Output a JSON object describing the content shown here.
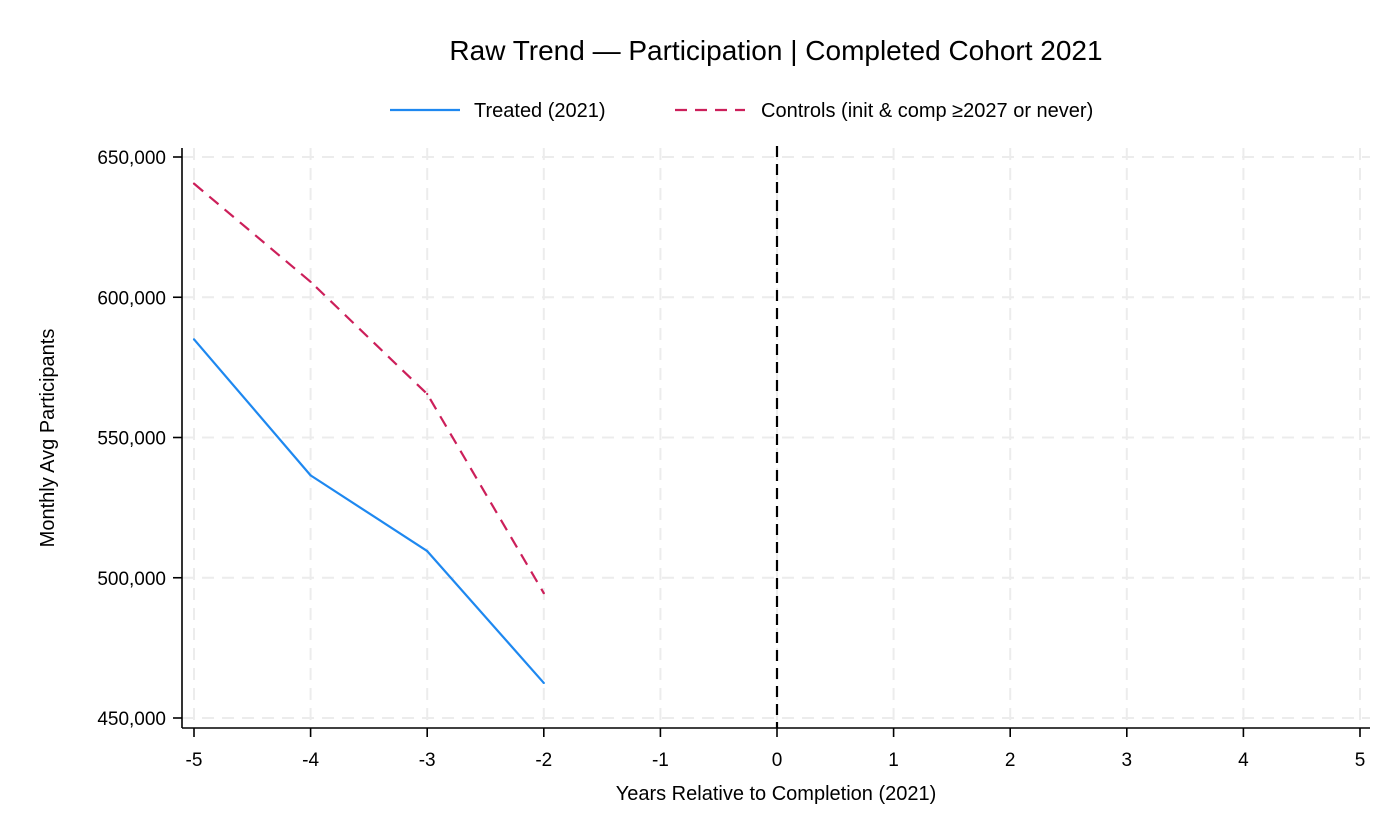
{
  "chart_data": {
    "type": "line",
    "title": "Raw Trend — Participation | Completed Cohort 2021",
    "xlabel": "Years Relative to Completion (2021)",
    "ylabel": "Monthly Avg Participants",
    "xlim": [
      -5,
      5
    ],
    "ylim": [
      450000,
      650000
    ],
    "x_ticks": [
      -5,
      -4,
      -3,
      -2,
      -1,
      0,
      1,
      2,
      3,
      4,
      5
    ],
    "x_tick_labels": [
      "-5",
      "-4",
      "-3",
      "-2",
      "-1",
      "0",
      "1",
      "2",
      "3",
      "4",
      "5"
    ],
    "y_ticks": [
      450000,
      500000,
      550000,
      600000,
      650000
    ],
    "y_tick_labels": [
      "450,000",
      "500,000",
      "550,000",
      "600,000",
      "650,000"
    ],
    "grid": true,
    "legend_position": "top",
    "reference_line": {
      "x": 0,
      "style": "dashed",
      "color": "#000000"
    },
    "series": [
      {
        "name": "Treated (2021)",
        "color": "#1e88f0",
        "style": "solid",
        "x": [
          -5,
          -4,
          -3,
          -2
        ],
        "y": [
          585000,
          536500,
          509500,
          462500
        ]
      },
      {
        "name": "Controls (init & comp ≥2027 or never)",
        "color": "#cc1f5a",
        "style": "dashed",
        "x": [
          -5,
          -4,
          -3,
          -2
        ],
        "y": [
          640500,
          605500,
          565500,
          494500
        ]
      }
    ]
  }
}
